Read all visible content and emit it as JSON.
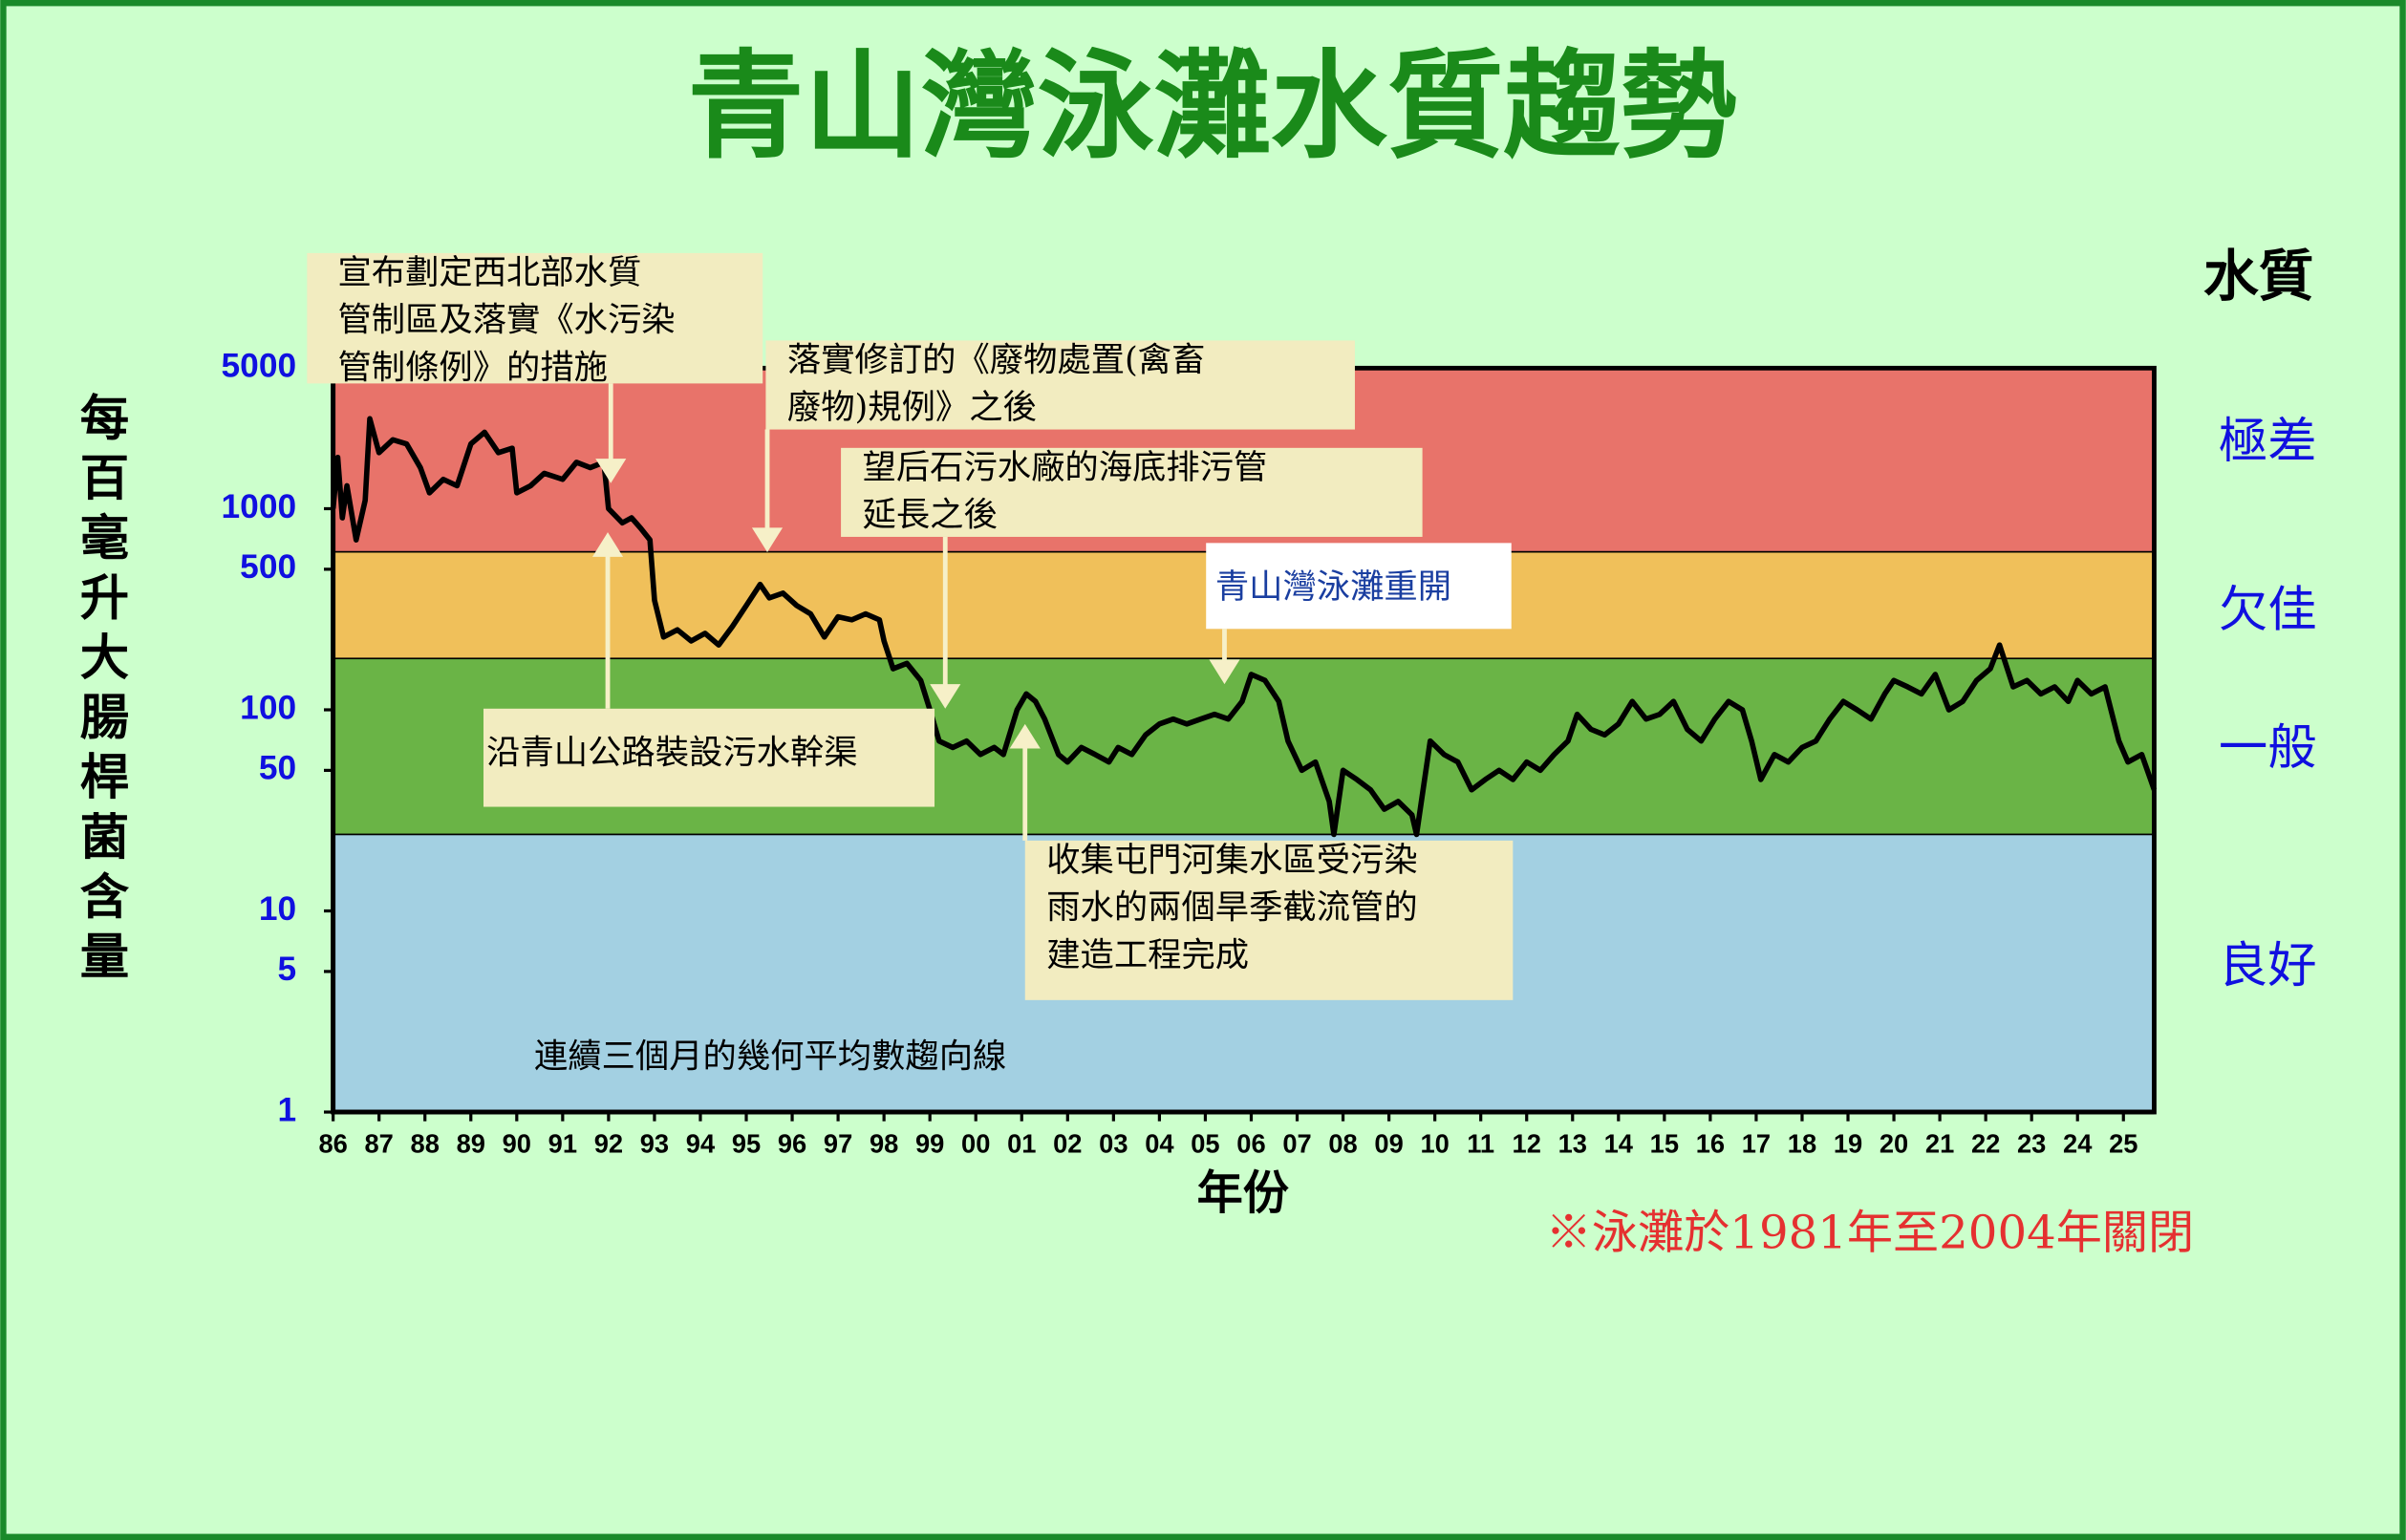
{
  "chart_data": {
    "type": "line",
    "title": "青山灣泳灘水質趨勢",
    "y_axis_label": "每百毫升大腸桿菌含量",
    "x_axis_label": "年份",
    "right_axis_label": "水質",
    "footnote": "※泳灘於1981年至2004年關閉",
    "log_scale": true,
    "ylim": [
      1,
      5000
    ],
    "yticks": [
      1,
      5,
      10,
      50,
      100,
      500,
      1000,
      5000
    ],
    "xlim": [
      1986,
      2025.67
    ],
    "xticks": [
      {
        "value": 1986,
        "label": "86"
      },
      {
        "value": 1987,
        "label": "87"
      },
      {
        "value": 1988,
        "label": "88"
      },
      {
        "value": 1989,
        "label": "89"
      },
      {
        "value": 1990,
        "label": "90"
      },
      {
        "value": 1991,
        "label": "91"
      },
      {
        "value": 1992,
        "label": "92"
      },
      {
        "value": 1993,
        "label": "93"
      },
      {
        "value": 1994,
        "label": "94"
      },
      {
        "value": 1995,
        "label": "95"
      },
      {
        "value": 1996,
        "label": "96"
      },
      {
        "value": 1997,
        "label": "97"
      },
      {
        "value": 1998,
        "label": "98"
      },
      {
        "value": 1999,
        "label": "99"
      },
      {
        "value": 2000,
        "label": "00"
      },
      {
        "value": 2001,
        "label": "01"
      },
      {
        "value": 2002,
        "label": "02"
      },
      {
        "value": 2003,
        "label": "03"
      },
      {
        "value": 2004,
        "label": "04"
      },
      {
        "value": 2005,
        "label": "05"
      },
      {
        "value": 2006,
        "label": "06"
      },
      {
        "value": 2007,
        "label": "07"
      },
      {
        "value": 2008,
        "label": "08"
      },
      {
        "value": 2009,
        "label": "09"
      },
      {
        "value": 2010,
        "label": "10"
      },
      {
        "value": 2011,
        "label": "11"
      },
      {
        "value": 2012,
        "label": "12"
      },
      {
        "value": 2013,
        "label": "13"
      },
      {
        "value": 2014,
        "label": "14"
      },
      {
        "value": 2015,
        "label": "15"
      },
      {
        "value": 2016,
        "label": "16"
      },
      {
        "value": 2017,
        "label": "17"
      },
      {
        "value": 2018,
        "label": "18"
      },
      {
        "value": 2019,
        "label": "19"
      },
      {
        "value": 2020,
        "label": "20"
      },
      {
        "value": 2021,
        "label": "21"
      },
      {
        "value": 2022,
        "label": "22"
      },
      {
        "value": 2023,
        "label": "23"
      },
      {
        "value": 2024,
        "label": "24"
      },
      {
        "value": 2025,
        "label": "25"
      }
    ],
    "bands": [
      {
        "label": "極差",
        "from": 610,
        "to": 5000,
        "color": "#e8736a"
      },
      {
        "label": "欠佳",
        "from": 180,
        "to": 610,
        "color": "#f0c05a"
      },
      {
        "label": "一般",
        "from": 24,
        "to": 180,
        "color": "#6ab446"
      },
      {
        "label": "良好",
        "from": 1,
        "to": 24,
        "color": "#a3d0e2"
      }
    ],
    "x": [
      1986.0,
      1986.1,
      1986.2,
      1986.3,
      1986.5,
      1986.7,
      1986.8,
      1987.0,
      1987.3,
      1987.6,
      1987.9,
      1988.1,
      1988.4,
      1988.7,
      1989.0,
      1989.3,
      1989.6,
      1989.9,
      1990.0,
      1990.3,
      1990.6,
      1991.0,
      1991.3,
      1991.6,
      1991.9,
      1992.0,
      1992.3,
      1992.5,
      1992.7,
      1992.9,
      1993.0,
      1993.2,
      1993.5,
      1993.8,
      1994.1,
      1994.4,
      1994.7,
      1995.0,
      1995.3,
      1995.5,
      1995.8,
      1996.1,
      1996.4,
      1996.7,
      1997.0,
      1997.3,
      1997.6,
      1997.9,
      1998.0,
      1998.2,
      1998.5,
      1998.8,
      1999.0,
      1999.2,
      1999.5,
      1999.8,
      2000.1,
      2000.4,
      2000.6,
      2000.9,
      2001.1,
      2001.3,
      2001.5,
      2001.8,
      2002.0,
      2002.3,
      2002.6,
      2002.9,
      2003.1,
      2003.4,
      2003.7,
      2004.0,
      2004.3,
      2004.6,
      2004.9,
      2005.2,
      2005.5,
      2005.8,
      2006.0,
      2006.3,
      2006.6,
      2006.8,
      2007.1,
      2007.4,
      2007.7,
      2007.8,
      2008.0,
      2008.3,
      2008.6,
      2008.9,
      2009.2,
      2009.5,
      2009.6,
      2009.9,
      2010.2,
      2010.5,
      2010.8,
      2011.1,
      2011.4,
      2011.7,
      2012.0,
      2012.3,
      2012.6,
      2012.9,
      2013.1,
      2013.4,
      2013.7,
      2014.0,
      2014.3,
      2014.6,
      2014.9,
      2015.2,
      2015.5,
      2015.8,
      2016.1,
      2016.4,
      2016.7,
      2016.9,
      2017.1,
      2017.4,
      2017.7,
      2018.0,
      2018.3,
      2018.6,
      2018.9,
      2019.2,
      2019.5,
      2019.8,
      2020.0,
      2020.3,
      2020.6,
      2020.9,
      2021.2,
      2021.5,
      2021.8,
      2022.1,
      2022.3,
      2022.6,
      2022.9,
      2023.2,
      2023.5,
      2023.8,
      2024.0,
      2024.3,
      2024.6,
      2024.9,
      2025.1,
      2025.4,
      2025.67
    ],
    "series": [
      {
        "name": "連續三個月的幾何平均數趨向線",
        "color": "#000000",
        "values": [
          1000,
          1800,
          900,
          1300,
          700,
          1100,
          2800,
          1900,
          2200,
          2100,
          1600,
          1200,
          1400,
          1300,
          2100,
          2400,
          1900,
          2000,
          1200,
          1300,
          1500,
          1400,
          1700,
          1600,
          1700,
          1000,
          850,
          900,
          800,
          700,
          350,
          230,
          250,
          220,
          240,
          210,
          260,
          330,
          420,
          360,
          380,
          330,
          300,
          230,
          290,
          280,
          300,
          280,
          220,
          160,
          170,
          140,
          100,
          70,
          65,
          70,
          60,
          65,
          60,
          100,
          120,
          110,
          90,
          60,
          55,
          65,
          60,
          55,
          65,
          60,
          75,
          85,
          90,
          85,
          90,
          95,
          90,
          110,
          150,
          140,
          110,
          70,
          50,
          55,
          35,
          24,
          50,
          45,
          40,
          32,
          35,
          30,
          24,
          70,
          60,
          55,
          40,
          45,
          50,
          45,
          55,
          50,
          60,
          70,
          95,
          80,
          75,
          85,
          110,
          90,
          95,
          110,
          80,
          70,
          90,
          110,
          100,
          70,
          45,
          60,
          55,
          65,
          70,
          90,
          110,
          100,
          90,
          120,
          140,
          130,
          120,
          150,
          100,
          110,
          140,
          160,
          210,
          130,
          140,
          120,
          130,
          110,
          140,
          120,
          130,
          70,
          55,
          60,
          40
        ]
      }
    ],
    "annotations": [
      {
        "lines": [
          "宣布劃定西北部水質",
          "管制區及落實《水污染",
          "管制條例》的措施"
        ]
      },
      {
        "lines": [
          "落實修訂的《廢物處置(禽畜",
          "廢物)規例》之後"
        ]
      },
      {
        "lines": [
          "望后石污水廠的海底排污管",
          "延長之後"
        ]
      },
      {
        "lines": [
          "青山灣泳灘重開"
        ]
      },
      {
        "lines": [
          "沿青山公路裝設污水幹渠"
        ]
      },
      {
        "lines": [
          "收集屯門河集水區受污染",
          "雨水的兩個旱季截流管的",
          "建造工程完成"
        ]
      }
    ]
  }
}
